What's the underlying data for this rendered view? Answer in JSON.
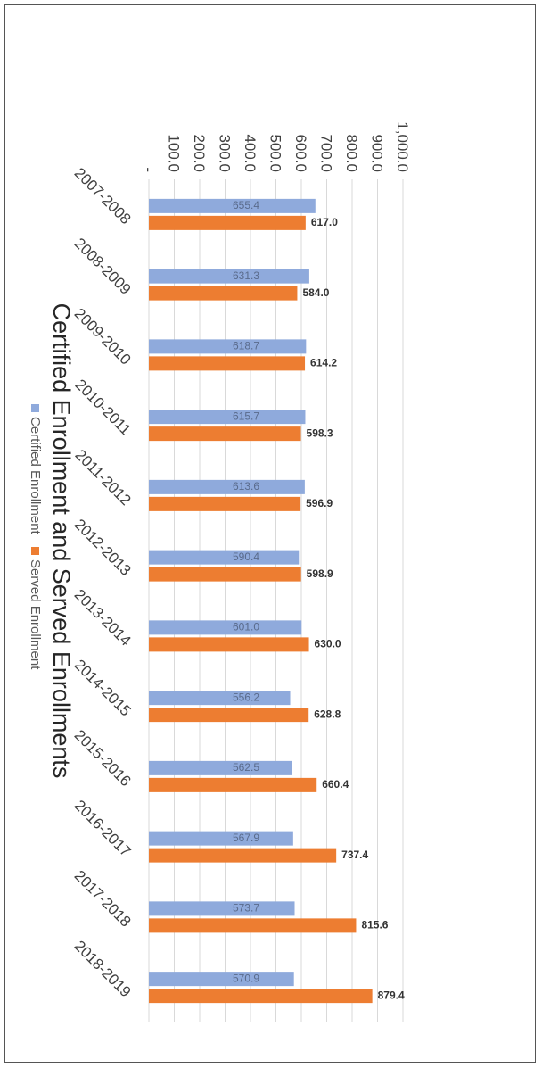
{
  "chart_data": {
    "type": "bar",
    "title": "Certified Enrollment and Served Enrollments",
    "categories": [
      "2007-2008",
      "2008-2009",
      "2009-2010",
      "2010-2011",
      "2011-2012",
      "2012-2013",
      "2013-2014",
      "2014-2015",
      "2015-2016",
      "2016-2017",
      "2017-2018",
      "2018-2019"
    ],
    "series": [
      {
        "name": "Certified Enrollment",
        "color": "#8FAADC",
        "values": [
          655.4,
          631.3,
          618.7,
          615.7,
          613.6,
          590.4,
          601.0,
          556.2,
          562.5,
          567.9,
          573.7,
          570.9
        ],
        "labels": [
          "655.4",
          "631.3",
          "618.7",
          "615.7",
          "613.6",
          "590.4",
          "601.0",
          "556.2",
          "562.5",
          "567.9",
          "573.7",
          "570.9"
        ]
      },
      {
        "name": "Served Enrollment",
        "color": "#ED7D31",
        "values": [
          617.0,
          584.0,
          614.2,
          598.3,
          596.9,
          598.9,
          630.0,
          628.8,
          660.4,
          737.4,
          815.6,
          879.4
        ],
        "labels": [
          "617.0",
          "584.0",
          "614.2",
          "598.3",
          "596.9",
          "598.9",
          "630.0",
          "628.8",
          "660.4",
          "737.4",
          "815.6",
          "879.4"
        ]
      }
    ],
    "yticks": [
      "-",
      "100.0",
      "200.0",
      "300.0",
      "400.0",
      "500.0",
      "600.0",
      "700.0",
      "800.0",
      "900.0",
      "1,000.0"
    ],
    "ylim": [
      0,
      1000
    ],
    "legend": "bottom",
    "grid": true,
    "orientation": "rotated 90° clockwise on page"
  }
}
